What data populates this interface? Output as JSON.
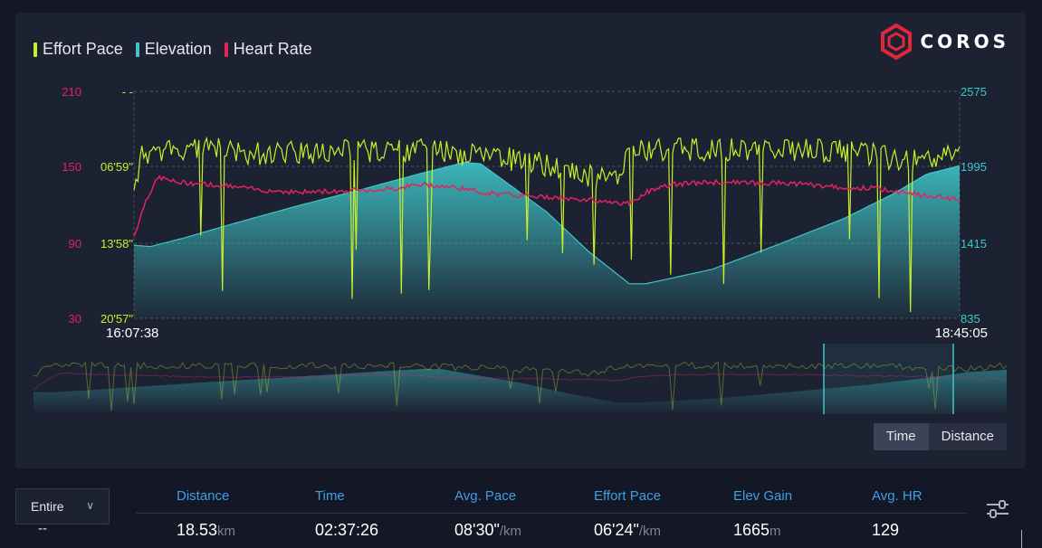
{
  "legend": [
    {
      "label": "Effort Pace",
      "color": "#c7f02a"
    },
    {
      "label": "Elevation",
      "color": "#3fc6c9"
    },
    {
      "label": "Heart Rate",
      "color": "#e0245e"
    }
  ],
  "brand": {
    "name": "COROS",
    "color": "#e0283a"
  },
  "chart_data": {
    "type": "line",
    "x_start": "16:07:38",
    "x_end": "18:45:05",
    "hr_axis": {
      "ticks": [
        "210",
        "150",
        "90",
        "30"
      ],
      "color": "#e0245e",
      "range": [
        30,
        210
      ]
    },
    "pace_axis": {
      "ticks": [
        "- -",
        "06'59\"",
        "13'58\"",
        "20'57\""
      ],
      "color": "#c7f02a"
    },
    "elev_axis": {
      "ticks": [
        "2575",
        "1995",
        "1415",
        "835"
      ],
      "color": "#3fc6c9",
      "range": [
        835,
        2575
      ]
    },
    "grid": "dashed horizontal",
    "series": [
      {
        "name": "Elevation",
        "unit": "m",
        "t": [
          0,
          0.02,
          0.06,
          0.12,
          0.2,
          0.28,
          0.35,
          0.4,
          0.42,
          0.5,
          0.55,
          0.6,
          0.62,
          0.7,
          0.78,
          0.86,
          0.92,
          0.96,
          1.0
        ],
        "values": [
          1395,
          1385,
          1450,
          1560,
          1700,
          1830,
          1950,
          2030,
          2020,
          1650,
          1350,
          1100,
          1100,
          1210,
          1400,
          1600,
          1790,
          1940,
          2005
        ]
      },
      {
        "name": "Heart Rate",
        "unit": "bpm",
        "t": [
          0,
          0.015,
          0.03,
          0.05,
          0.1,
          0.15,
          0.2,
          0.3,
          0.35,
          0.4,
          0.42,
          0.45,
          0.5,
          0.55,
          0.6,
          0.62,
          0.65,
          0.7,
          0.8,
          0.85,
          0.9,
          0.95,
          1.0
        ],
        "values": [
          95,
          125,
          142,
          138,
          136,
          132,
          130,
          132,
          136,
          133,
          130,
          128,
          126,
          124,
          121,
          130,
          136,
          138,
          137,
          134,
          133,
          128,
          124
        ]
      },
      {
        "name": "Effort Pace",
        "unit": "min/km",
        "t": [
          0,
          0.01,
          0.03,
          0.08,
          0.15,
          0.25,
          0.35,
          0.4,
          0.45,
          0.5,
          0.55,
          0.58,
          0.6,
          0.65,
          0.75,
          0.85,
          0.9,
          0.93,
          0.97,
          1.0
        ],
        "values": [
          9.0,
          5.8,
          5.5,
          5.3,
          5.7,
          5.6,
          5.5,
          5.8,
          6.2,
          6.8,
          7.8,
          8.3,
          5.6,
          5.4,
          5.4,
          5.5,
          5.9,
          6.6,
          6.3,
          5.4
        ]
      }
    ]
  },
  "toggle": {
    "time": "Time",
    "distance": "Distance"
  },
  "range_select": {
    "value": "Entire",
    "row_value": "--"
  },
  "stats": [
    {
      "label": "Distance",
      "value": "18.53",
      "unit": "km"
    },
    {
      "label": "Time",
      "value": "02:37:26",
      "unit": ""
    },
    {
      "label": "Avg. Pace",
      "value": "08'30\"",
      "unit": "/km"
    },
    {
      "label": "Effort Pace",
      "value": "06'24\"",
      "unit": "/km"
    },
    {
      "label": "Elev Gain",
      "value": "1665",
      "unit": "m"
    },
    {
      "label": "Avg. HR",
      "value": "129",
      "unit": ""
    }
  ]
}
